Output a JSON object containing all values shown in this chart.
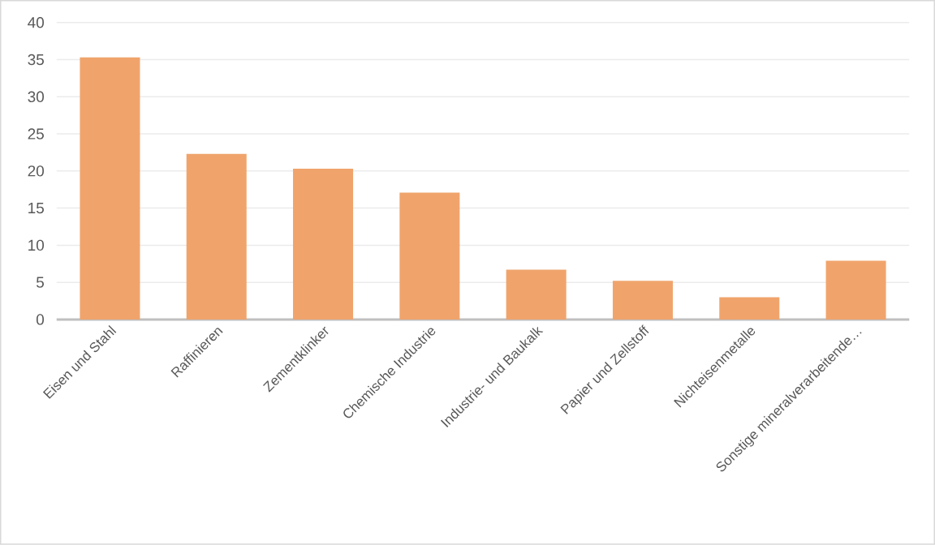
{
  "chart_data": {
    "type": "bar",
    "categories": [
      "Eisen und Stahl",
      "Raffinieren",
      "Zementklinker",
      "Chemische Industrie",
      "Industrie- und Baukalk",
      "Papier und Zellstoff",
      "Nichteisenmetalle",
      "Sonstige mineralverarbeitende…"
    ],
    "values": [
      35.3,
      22.3,
      20.3,
      17.1,
      6.7,
      5.2,
      3.0,
      7.9
    ],
    "color": "#f0a46c",
    "ylim": [
      0,
      40
    ],
    "yticks": [
      0,
      5,
      10,
      15,
      20,
      25,
      30,
      35,
      40
    ],
    "grid": "y"
  }
}
